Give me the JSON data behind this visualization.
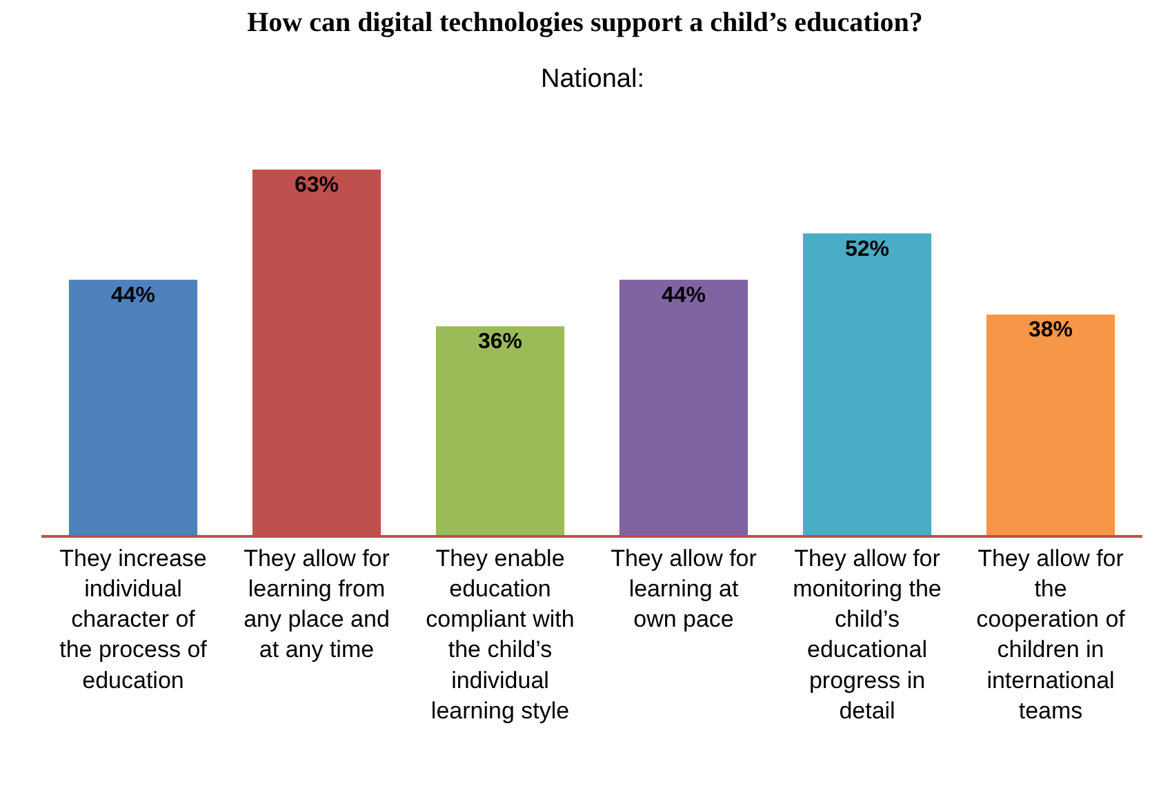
{
  "chart_data": {
    "type": "bar",
    "title": "How can digital technologies support a child’s education?",
    "subtitle": "National:",
    "categories": [
      "They increase individual character of the process of education",
      "They allow for learning from any place and at any time",
      "They enable education compliant with the child’s individual learning style",
      "They allow for learning at own pace",
      "They allow for monitoring the child’s educational progress in detail",
      "They allow for the cooperation of children in international teams"
    ],
    "values": [
      44,
      63,
      36,
      44,
      52,
      38
    ],
    "colors": [
      "#4f81bd",
      "#c0504d",
      "#9bbb59",
      "#8064a2",
      "#4bacc6",
      "#f79646"
    ],
    "value_labels": [
      "44%",
      "63%",
      "36%",
      "44%",
      "52%",
      "38%"
    ],
    "legend": false
  }
}
